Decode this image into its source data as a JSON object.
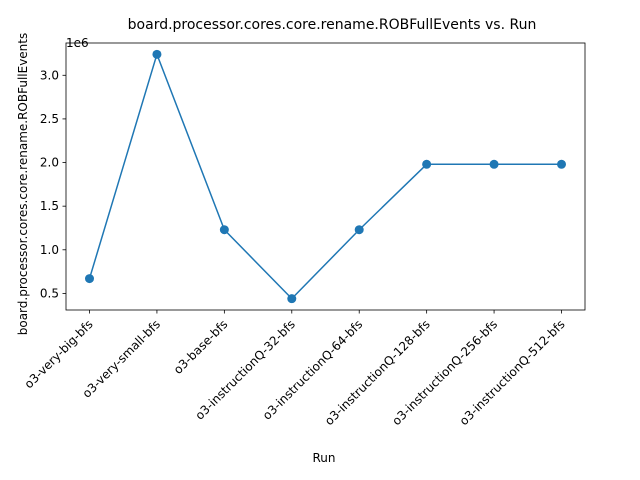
{
  "chart_data": {
    "type": "line",
    "title": "board.processor.cores.core.rename.ROBFullEvents vs. Run",
    "xlabel": "Run",
    "ylabel": "board.processor.cores.core.rename.ROBFullEvents",
    "offset_text": "1e6",
    "categories": [
      "o3-very-big-bfs",
      "o3-very-small-bfs",
      "o3-base-bfs",
      "o3-instructionQ-32-bfs",
      "o3-instructionQ-64-bfs",
      "o3-instructionQ-128-bfs",
      "o3-instructionQ-256-bfs",
      "o3-instructionQ-512-bfs"
    ],
    "series": [
      {
        "values": [
          670000,
          3240000,
          1230000,
          440000,
          1230000,
          1980000,
          1980000,
          1980000
        ],
        "color": "#1f77b4",
        "marker": "circle"
      }
    ],
    "ylim": [
      310000,
      3370000
    ],
    "yticks": [
      0.5,
      1.0,
      1.5,
      2.0,
      2.5,
      3.0
    ],
    "ytick_labels": [
      "0.5",
      "1.0",
      "1.5",
      "2.0",
      "2.5",
      "3.0"
    ],
    "ytick_scale": 1000000,
    "grid": false,
    "legend": "none"
  }
}
